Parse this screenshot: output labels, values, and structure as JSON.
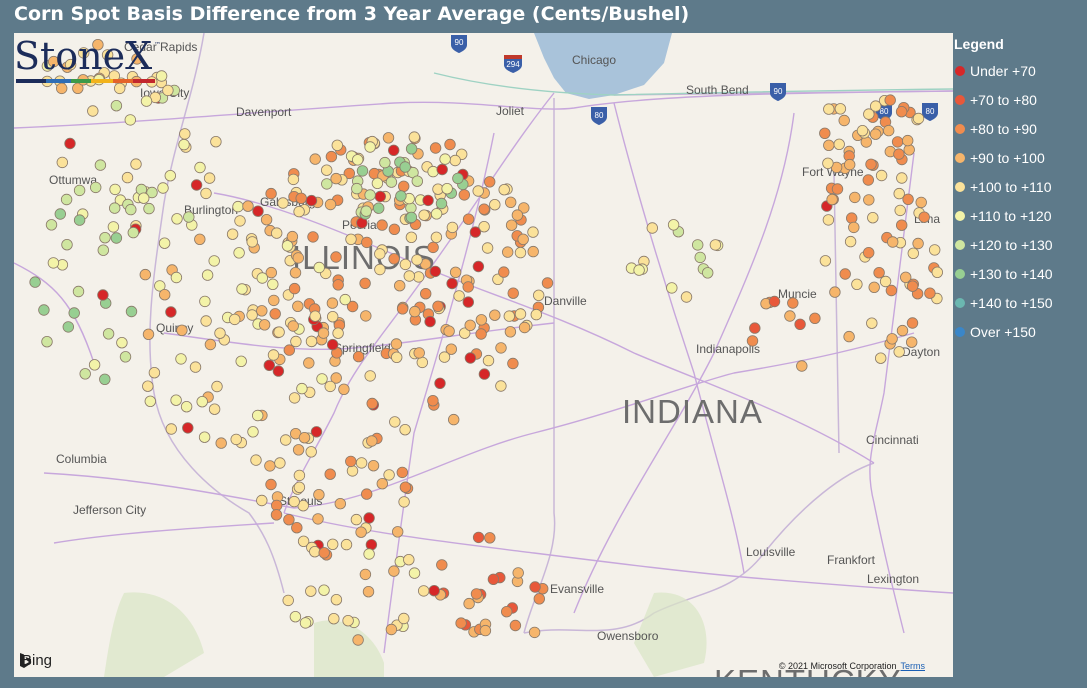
{
  "title": "Corn Spot Basis Difference from 3 Year Average (Cents/Bushel)",
  "legend": {
    "title": "Legend",
    "items": [
      {
        "label": "Under +70",
        "color": "#d62728"
      },
      {
        "label": "+70 to +80",
        "color": "#e8583a"
      },
      {
        "label": "+80 to +90",
        "color": "#f08c4e"
      },
      {
        "label": "+90 to +100",
        "color": "#f6b56b"
      },
      {
        "label": "+100 to +110",
        "color": "#fbe29a"
      },
      {
        "label": "+110 to +120",
        "color": "#f3f3a8"
      },
      {
        "label": "+120 to +130",
        "color": "#cfe6a0"
      },
      {
        "label": "+130 to +140",
        "color": "#98cf92"
      },
      {
        "label": "+140 to +150",
        "color": "#6bb7b0"
      },
      {
        "label": "Over +150",
        "color": "#3a86c8"
      }
    ]
  },
  "logo": {
    "text": "StoneX",
    "tm": "™"
  },
  "map": {
    "states": [
      "ILLINOIS",
      "INDIANA",
      "KENTUCKY"
    ],
    "cities": [
      "Cedar Rapids",
      "Iowa City",
      "Davenport",
      "Ottumwa",
      "Burlington",
      "Galesburg",
      "Peoria",
      "Quincy",
      "Springfield",
      "Danville",
      "Chicago",
      "Joliet",
      "South Bend",
      "Fort Wayne",
      "Lima",
      "Muncie",
      "Indianapolis",
      "Dayton",
      "Cincinnati",
      "Columbia",
      "Jefferson City",
      "St Louis",
      "Evansville",
      "Owensboro",
      "Louisville",
      "Frankfort",
      "Lexington"
    ],
    "highways": [
      "90",
      "294",
      "80",
      "90",
      "80",
      "80"
    ]
  },
  "footer": {
    "bing": "Bing",
    "copyright": "© 2021 Microsoft Corporation",
    "terms": "Terms"
  }
}
